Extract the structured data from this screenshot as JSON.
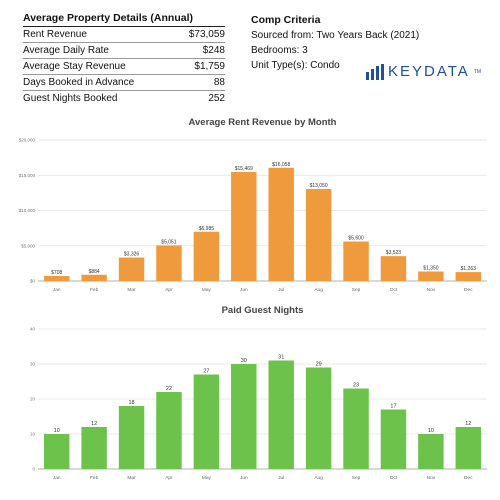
{
  "details": {
    "title": "Average Property Details (Annual)",
    "rows": [
      {
        "label": "Rent Revenue",
        "value": "$73,059"
      },
      {
        "label": "Average Daily Rate",
        "value": "$248"
      },
      {
        "label": "Average Stay Revenue",
        "value": "$1,759"
      },
      {
        "label": "Days Booked in Advance",
        "value": "88"
      },
      {
        "label": "Guest Nights Booked",
        "value": "252"
      }
    ]
  },
  "criteria": {
    "title": "Comp Criteria",
    "sourced": "Sourced from: Two Years Back (2021)",
    "bedrooms": "Bedrooms: 3",
    "unit_type": "Unit Type(s):  Condo"
  },
  "logo": {
    "word": "KEYDATA",
    "tm": "TM",
    "color": "#1f4fa3"
  },
  "chart_data": [
    {
      "type": "bar",
      "title": "Average Rent Revenue by Month",
      "categories": [
        "Jan",
        "Feb",
        "Mar",
        "Apr",
        "May",
        "Jun",
        "Jul",
        "Aug",
        "Sep",
        "Oct",
        "Nov",
        "Dec"
      ],
      "values": [
        708,
        884,
        3326,
        5051,
        6985,
        15469,
        16058,
        13050,
        5600,
        3523,
        1350,
        1263
      ],
      "labels": [
        "$708",
        "$884",
        "$3,326",
        "$5,051",
        "$6,985",
        "$15,469",
        "$16,058",
        "$13,050",
        "$5,600",
        "$3,523",
        "$1,350",
        "$1,263"
      ],
      "yticks": [
        0,
        5000,
        10000,
        15000,
        20000
      ],
      "ytick_labels": [
        "$0",
        "$5,000",
        "$10,000",
        "$15,000",
        "$20,000"
      ],
      "ylim": [
        0,
        20000
      ],
      "grid": true,
      "color": "#f09a3e"
    },
    {
      "type": "bar",
      "title": "Paid Guest Nights",
      "categories": [
        "Jan",
        "Feb",
        "Mar",
        "Apr",
        "May",
        "Jun",
        "Jul",
        "Aug",
        "Sep",
        "Oct",
        "Nov",
        "Dec"
      ],
      "values": [
        10,
        12,
        18,
        22,
        27,
        30,
        31,
        29,
        23,
        17,
        10,
        12
      ],
      "labels": [
        "10",
        "12",
        "18",
        "22",
        "27",
        "30",
        "31",
        "29",
        "23",
        "17",
        "10",
        "12"
      ],
      "yticks": [
        0,
        10,
        20,
        30,
        40
      ],
      "ytick_labels": [
        "0",
        "10",
        "20",
        "30",
        "40"
      ],
      "ylim": [
        0,
        40
      ],
      "grid": true,
      "color": "#6cc24a"
    }
  ]
}
